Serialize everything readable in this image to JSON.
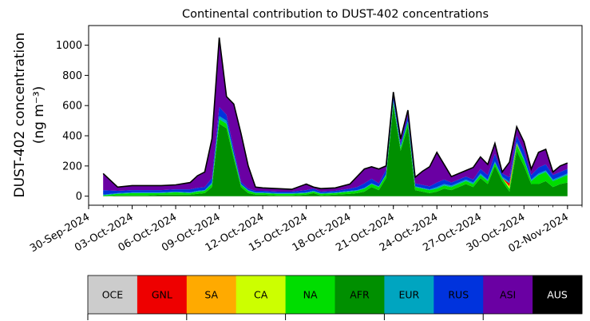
{
  "chart_data": {
    "type": "area",
    "title": "Continental contribution to DUST-402 concentrations",
    "ylabel_line1": "DUST-402 concentration",
    "ylabel_line2": "(ng m⁻³)",
    "ylim": [
      -60,
      1130
    ],
    "yticks": [
      0,
      200,
      400,
      600,
      800,
      1000
    ],
    "xlim": [
      "2024-09-30",
      "2024-11-03"
    ],
    "xticks": [
      "30-Sep-2024",
      "03-Oct-2024",
      "06-Oct-2024",
      "09-Oct-2024",
      "12-Oct-2024",
      "15-Oct-2024",
      "18-Oct-2024",
      "21-Oct-2024",
      "24-Oct-2024",
      "27-Oct-2024",
      "30-Oct-2024",
      "02-Nov-2024"
    ],
    "x_start": "2024-10-01",
    "x": [
      "2024-10-01",
      "2024-10-02",
      "2024-10-03",
      "2024-10-04",
      "2024-10-05",
      "2024-10-06",
      "2024-10-07",
      "2024-10-07 12:00",
      "2024-10-08",
      "2024-10-08 12:00",
      "2024-10-09",
      "2024-10-09 12:00",
      "2024-10-10",
      "2024-10-10 12:00",
      "2024-10-11",
      "2024-10-11 12:00",
      "2024-10-12",
      "2024-10-13",
      "2024-10-14",
      "2024-10-15",
      "2024-10-15 12:00",
      "2024-10-16",
      "2024-10-17",
      "2024-10-18",
      "2024-10-18 12:00",
      "2024-10-19",
      "2024-10-19 12:00",
      "2024-10-20",
      "2024-10-20 12:00",
      "2024-10-21",
      "2024-10-21 12:00",
      "2024-10-22",
      "2024-10-22 12:00",
      "2024-10-23",
      "2024-10-23 12:00",
      "2024-10-24",
      "2024-10-24 12:00",
      "2024-10-25",
      "2024-10-26",
      "2024-10-26 12:00",
      "2024-10-27",
      "2024-10-27 12:00",
      "2024-10-28",
      "2024-10-28 12:00",
      "2024-10-29",
      "2024-10-29 12:00",
      "2024-10-30",
      "2024-10-30 12:00",
      "2024-10-31",
      "2024-10-31 12:00",
      "2024-11-01",
      "2024-11-01 12:00",
      "2024-11-02"
    ],
    "series": [
      {
        "name": "AFR",
        "color": "#008f00",
        "values": [
          0,
          5,
          5,
          5,
          10,
          10,
          10,
          15,
          20,
          60,
          480,
          450,
          250,
          60,
          20,
          10,
          10,
          5,
          5,
          10,
          20,
          5,
          10,
          15,
          20,
          30,
          60,
          40,
          120,
          600,
          300,
          460,
          40,
          30,
          20,
          30,
          50,
          40,
          80,
          60,
          120,
          80,
          200,
          100,
          30,
          300,
          200,
          80,
          80,
          100,
          60,
          80,
          90
        ]
      },
      {
        "name": "NA",
        "color": "#00dd00",
        "values": [
          5,
          10,
          15,
          15,
          10,
          15,
          10,
          15,
          15,
          20,
          30,
          30,
          20,
          15,
          15,
          10,
          10,
          10,
          10,
          10,
          10,
          10,
          10,
          15,
          15,
          20,
          20,
          20,
          20,
          20,
          20,
          30,
          20,
          20,
          20,
          20,
          20,
          20,
          20,
          20,
          20,
          20,
          20,
          20,
          20,
          40,
          40,
          20,
          60,
          60,
          40,
          40,
          50
        ]
      },
      {
        "name": "CA",
        "color": "#ccff00",
        "values": [
          0,
          0,
          0,
          0,
          0,
          0,
          0,
          0,
          0,
          0,
          0,
          0,
          0,
          0,
          0,
          0,
          0,
          0,
          0,
          0,
          0,
          0,
          0,
          0,
          0,
          0,
          0,
          0,
          0,
          0,
          0,
          0,
          0,
          0,
          0,
          0,
          0,
          0,
          0,
          0,
          0,
          0,
          0,
          0,
          15,
          5,
          0,
          0,
          0,
          0,
          0,
          0,
          0
        ]
      },
      {
        "name": "GNL",
        "color": "#ee0000",
        "values": [
          0,
          0,
          0,
          0,
          0,
          0,
          0,
          0,
          0,
          0,
          0,
          0,
          0,
          0,
          0,
          0,
          0,
          0,
          0,
          0,
          0,
          0,
          0,
          0,
          0,
          0,
          0,
          0,
          0,
          0,
          0,
          0,
          0,
          0,
          0,
          0,
          0,
          0,
          0,
          0,
          0,
          0,
          0,
          0,
          20,
          5,
          0,
          0,
          0,
          0,
          0,
          0,
          0
        ]
      },
      {
        "name": "EUR",
        "color": "#00a5c0",
        "values": [
          5,
          5,
          5,
          5,
          5,
          5,
          5,
          5,
          5,
          10,
          20,
          20,
          10,
          5,
          5,
          5,
          5,
          5,
          5,
          5,
          5,
          5,
          5,
          5,
          5,
          5,
          5,
          5,
          5,
          10,
          10,
          10,
          5,
          5,
          5,
          10,
          10,
          10,
          10,
          10,
          10,
          10,
          10,
          10,
          10,
          10,
          10,
          10,
          10,
          10,
          10,
          10,
          10
        ]
      },
      {
        "name": "RUS",
        "color": "#0033dd",
        "values": [
          30,
          15,
          15,
          15,
          15,
          15,
          20,
          20,
          20,
          30,
          60,
          40,
          30,
          15,
          10,
          10,
          10,
          10,
          10,
          15,
          15,
          10,
          10,
          15,
          20,
          30,
          30,
          20,
          30,
          30,
          20,
          30,
          20,
          20,
          20,
          30,
          30,
          20,
          20,
          20,
          30,
          30,
          50,
          20,
          30,
          40,
          50,
          30,
          40,
          40,
          30,
          30,
          30
        ]
      },
      {
        "name": "ASI",
        "color": "#6a00a3",
        "values": [
          110,
          25,
          30,
          30,
          30,
          30,
          45,
          80,
          100,
          260,
          460,
          120,
          300,
          320,
          150,
          25,
          20,
          20,
          15,
          40,
          10,
          20,
          20,
          30,
          70,
          95,
          80,
          95,
          25,
          30,
          30,
          40,
          40,
          90,
          130,
          200,
          100,
          40,
          40,
          80,
          80,
          70,
          70,
          10,
          100,
          60,
          60,
          40,
          100,
          100,
          20,
          40,
          40
        ]
      },
      {
        "name": "AUS",
        "color": "#000000",
        "values": [
          0,
          0,
          0,
          0,
          0,
          0,
          0,
          0,
          0,
          0,
          0,
          0,
          0,
          0,
          0,
          0,
          0,
          0,
          0,
          0,
          0,
          0,
          0,
          0,
          0,
          0,
          0,
          0,
          0,
          0,
          0,
          0,
          0,
          0,
          0,
          0,
          0,
          0,
          0,
          0,
          0,
          0,
          0,
          0,
          0,
          0,
          0,
          0,
          0,
          0,
          0,
          0,
          0
        ]
      }
    ],
    "legend": [
      {
        "label": "OCE",
        "color": "#cccccc",
        "text_color": "#000000"
      },
      {
        "label": "GNL",
        "color": "#ee0000",
        "text_color": "#000000"
      },
      {
        "label": "SA",
        "color": "#ffaa00",
        "text_color": "#000000"
      },
      {
        "label": "CA",
        "color": "#ccff00",
        "text_color": "#000000"
      },
      {
        "label": "NA",
        "color": "#00dd00",
        "text_color": "#000000"
      },
      {
        "label": "AFR",
        "color": "#008f00",
        "text_color": "#000000"
      },
      {
        "label": "EUR",
        "color": "#00a5c0",
        "text_color": "#000000"
      },
      {
        "label": "RUS",
        "color": "#0033dd",
        "text_color": "#000000"
      },
      {
        "label": "ASI",
        "color": "#6a00a3",
        "text_color": "#000000"
      },
      {
        "label": "AUS",
        "color": "#000000",
        "text_color": "#ffffff"
      }
    ],
    "grid": false,
    "legend_placement": "bottom colorbar"
  }
}
